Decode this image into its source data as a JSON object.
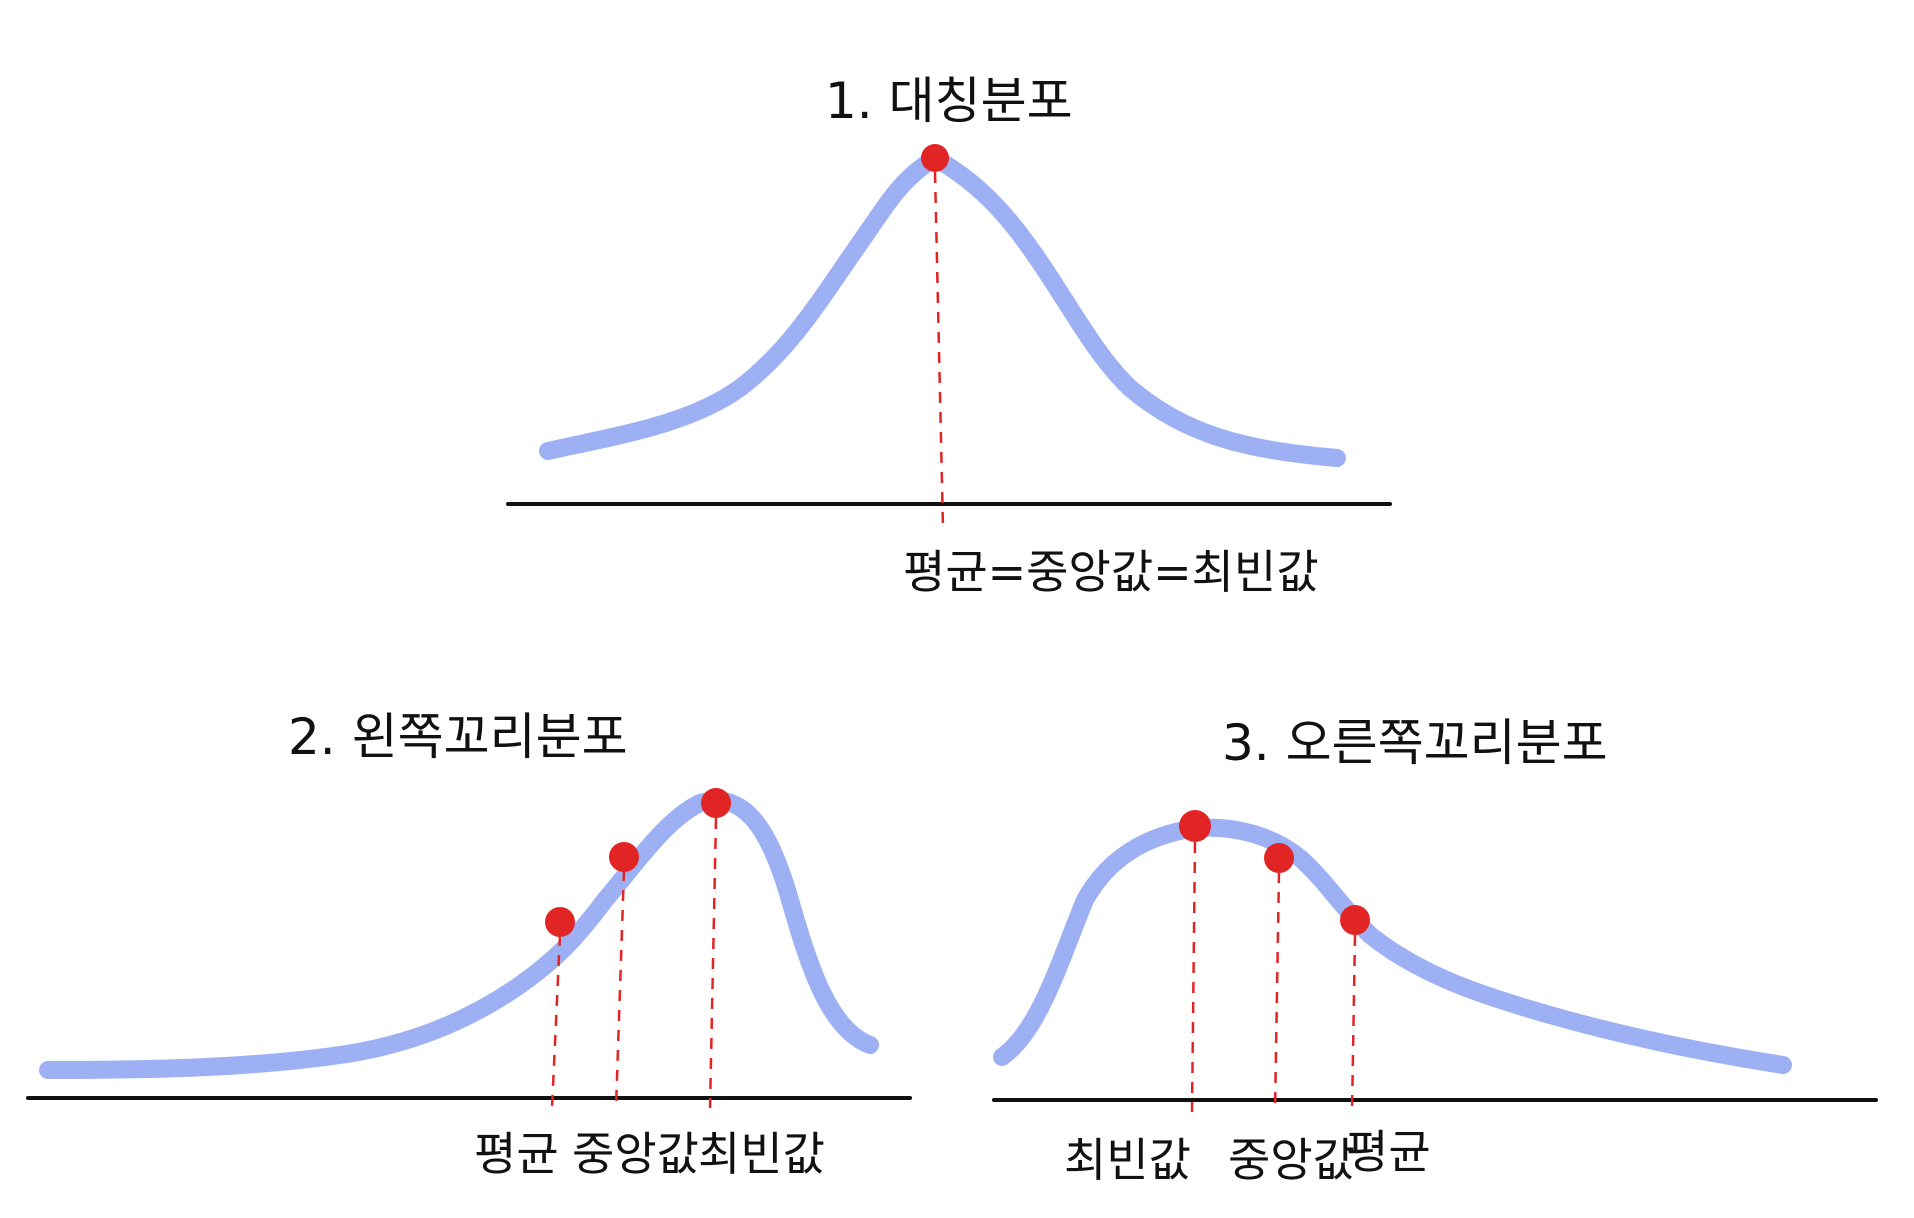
{
  "colors": {
    "curve": "#9db0f4",
    "marker": "#e12424",
    "guide": "#e12424",
    "axis": "#111111",
    "text": "#111111"
  },
  "panels": [
    {
      "id": "symmetric",
      "title": "1. 대칭분포",
      "labels": [
        "평균=중앙값=최빈값"
      ]
    },
    {
      "id": "left-skewed",
      "title": "2. 왼쪽꼬리분포",
      "labels": [
        "평균",
        "중앙값",
        "최빈값"
      ]
    },
    {
      "id": "right-skewed",
      "title": "3. 오른쪽꼬리분포",
      "labels": [
        "최빈값",
        "중앙값",
        "평균"
      ]
    }
  ]
}
